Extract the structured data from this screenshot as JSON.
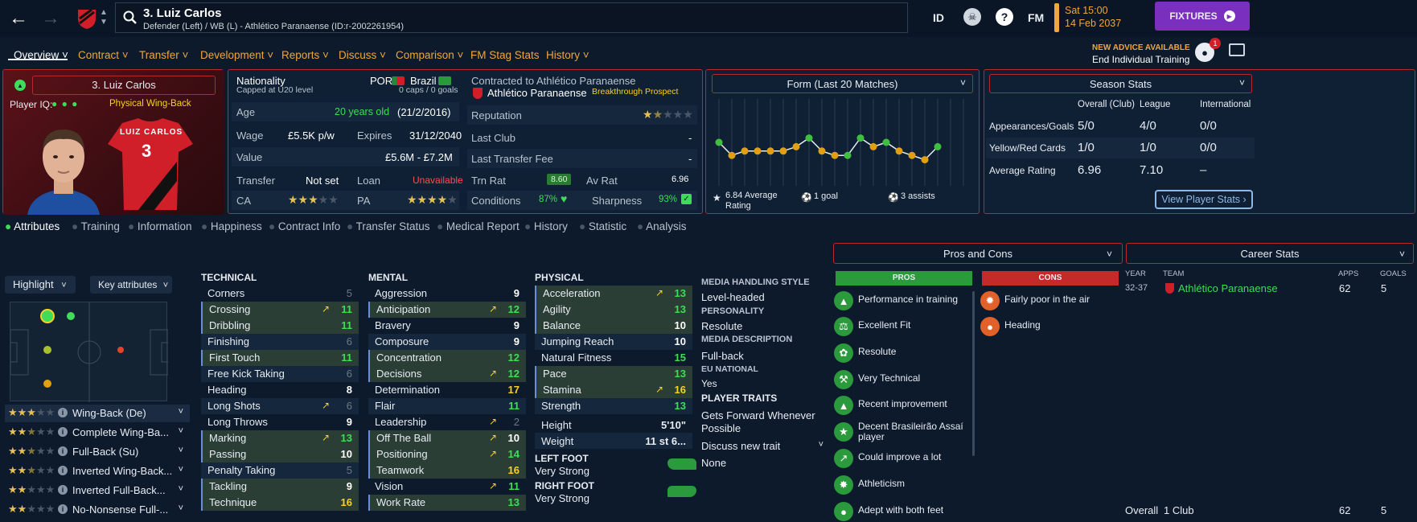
{
  "header": {
    "player_title": "3. Luiz Carlos",
    "player_sub": "Defender (Left) / WB (L) - Athlético Paranaense (ID:r-2002261954)",
    "id_label": "ID",
    "fm_label": "FM",
    "date_line1": "Sat 15:00",
    "date_line2": "14 Feb 2037",
    "fixtures_label": "FIXTURES",
    "advice_title": "NEW ADVICE AVAILABLE",
    "advice_sub": "End Individual Training",
    "notif_count": "1"
  },
  "nav": [
    "Overview",
    "Contract",
    "Transfer",
    "Development",
    "Reports",
    "Discuss",
    "Comparison",
    "FM Stag Stats",
    "History"
  ],
  "card": {
    "name": "3. Luiz Carlos",
    "iq_label": "Player IQ:",
    "role": "Physical Wing-Back",
    "shirt_name": "LUIZ CARLOS",
    "shirt_number": "3"
  },
  "info": {
    "nationality_label": "Nationality",
    "nationality_sub": "Capped at U20 level",
    "nat1": "POR",
    "nat2": "Brazil",
    "caps": "0 caps / 0 goals",
    "age_label": "Age",
    "age_val": "20 years old",
    "dob": "(21/2/2016)",
    "wage_label": "Wage",
    "wage_val": "£5.5K p/w",
    "expires_label": "Expires",
    "expires_val": "31/12/2040",
    "value_label": "Value",
    "value_val": "£5.6M - £7.2M",
    "transfer_label": "Transfer",
    "transfer_val": "Not set",
    "loan_label": "Loan",
    "loan_val": "Unavailable",
    "ca_label": "CA",
    "pa_label": "PA",
    "contracted_label": "Contracted to Athlético Paranaense",
    "club": "Athlético Paranaense",
    "prospect": "Breakthrough Prospect",
    "reputation_label": "Reputation",
    "last_club_label": "Last Club",
    "last_club_val": "-",
    "last_fee_label": "Last Transfer Fee",
    "last_fee_val": "-",
    "trn_rat_label": "Trn Rat",
    "trn_rat_val": "8.60",
    "av_rat_label": "Av Rat",
    "av_rat_val": "6.96",
    "conditions_label": "Conditions",
    "conditions_val": "87%",
    "sharpness_label": "Sharpness",
    "sharpness_val": "93%"
  },
  "form": {
    "title": "Form (Last 20 Matches)",
    "avg": "6.84 Average Rating",
    "goals": "1 goal",
    "assists": "3 assists"
  },
  "chart_data": {
    "type": "line",
    "title": "Form (Last 20 Matches)",
    "x": [
      1,
      2,
      3,
      4,
      5,
      6,
      7,
      8,
      9,
      10,
      11,
      12,
      13,
      14,
      15,
      16,
      17,
      18,
      19,
      20
    ],
    "values": [
      7.0,
      6.7,
      6.8,
      6.8,
      6.8,
      6.8,
      6.9,
      7.1,
      6.8,
      6.7,
      6.7,
      7.1,
      6.9,
      7.0,
      6.8,
      6.7,
      6.6,
      6.9,
      null,
      null
    ],
    "point_colors": [
      "#3fbf3f",
      "#e0a010",
      "#e0a010",
      "#e0a010",
      "#e0a010",
      "#e0a010",
      "#e0a010",
      "#3fbf3f",
      "#e0a010",
      "#e0a010",
      "#3fbf3f",
      "#3fbf3f",
      "#e0a010",
      "#3fbf3f",
      "#e0a010",
      "#e0a010",
      "#e0a010",
      "#3fbf3f"
    ],
    "ylim": [
      6.0,
      8.0
    ]
  },
  "season": {
    "title": "Season Stats",
    "cols": [
      "Overall (Club)",
      "League",
      "International"
    ],
    "rows": [
      {
        "label": "Appearances/Goals",
        "v": [
          "5/0",
          "4/0",
          "0/0"
        ]
      },
      {
        "label": "Yellow/Red Cards",
        "v": [
          "1/0",
          "1/0",
          "0/0"
        ]
      },
      {
        "label": "Average Rating",
        "v": [
          "6.96",
          "7.10",
          "–"
        ]
      }
    ],
    "btn": "View Player Stats"
  },
  "subtabs": [
    "Attributes",
    "Training",
    "Information",
    "Happiness",
    "Contract Info",
    "Transfer Status",
    "Medical Report",
    "History",
    "Statistic",
    "Analysis"
  ],
  "controls": {
    "highlight": "Highlight",
    "key_attr": "Key attributes"
  },
  "roles": [
    {
      "name": "Wing-Back (De)",
      "stars": 3,
      "half": false
    },
    {
      "name": "Complete Wing-Ba...",
      "stars": 2,
      "half": true
    },
    {
      "name": "Full-Back (Su)",
      "stars": 2,
      "half": true
    },
    {
      "name": "Inverted Wing-Back...",
      "stars": 2,
      "half": true
    },
    {
      "name": "Inverted Full-Back...",
      "stars": 2,
      "half": false
    },
    {
      "name": "No-Nonsense Full-...",
      "stars": 2,
      "half": false
    }
  ],
  "technical": {
    "title": "TECHNICAL",
    "items": [
      {
        "n": "Corners",
        "v": "5",
        "c": "dim"
      },
      {
        "n": "Crossing",
        "v": "11",
        "c": "green",
        "k": true,
        "arrow": true
      },
      {
        "n": "Dribbling",
        "v": "11",
        "c": "green",
        "k": true
      },
      {
        "n": "Finishing",
        "v": "6",
        "c": "dim"
      },
      {
        "n": "First Touch",
        "v": "11",
        "c": "green",
        "k": true
      },
      {
        "n": "Free Kick Taking",
        "v": "6",
        "c": "dim"
      },
      {
        "n": "Heading",
        "v": "8",
        "c": "white"
      },
      {
        "n": "Long Shots",
        "v": "6",
        "c": "dim",
        "arrow": true
      },
      {
        "n": "Long Throws",
        "v": "9",
        "c": "white"
      },
      {
        "n": "Marking",
        "v": "13",
        "c": "green",
        "k": true,
        "arrow": true
      },
      {
        "n": "Passing",
        "v": "10",
        "c": "white",
        "k": true
      },
      {
        "n": "Penalty Taking",
        "v": "5",
        "c": "dim"
      },
      {
        "n": "Tackling",
        "v": "9",
        "c": "white",
        "k": true
      },
      {
        "n": "Technique",
        "v": "16",
        "c": "yellow",
        "k": true
      }
    ]
  },
  "mental": {
    "title": "MENTAL",
    "items": [
      {
        "n": "Aggression",
        "v": "9",
        "c": "white"
      },
      {
        "n": "Anticipation",
        "v": "12",
        "c": "green",
        "k": true,
        "arrow": true
      },
      {
        "n": "Bravery",
        "v": "9",
        "c": "white"
      },
      {
        "n": "Composure",
        "v": "9",
        "c": "white"
      },
      {
        "n": "Concentration",
        "v": "12",
        "c": "green",
        "k": true
      },
      {
        "n": "Decisions",
        "v": "12",
        "c": "green",
        "k": true,
        "arrow": true
      },
      {
        "n": "Determination",
        "v": "17",
        "c": "yellow"
      },
      {
        "n": "Flair",
        "v": "11",
        "c": "green"
      },
      {
        "n": "Leadership",
        "v": "2",
        "c": "dim",
        "arrow": true
      },
      {
        "n": "Off The Ball",
        "v": "10",
        "c": "white",
        "k": true,
        "arrow": true
      },
      {
        "n": "Positioning",
        "v": "14",
        "c": "green",
        "k": true,
        "arrow": true
      },
      {
        "n": "Teamwork",
        "v": "16",
        "c": "yellow",
        "k": true
      },
      {
        "n": "Vision",
        "v": "11",
        "c": "green",
        "arrow": true
      },
      {
        "n": "Work Rate",
        "v": "13",
        "c": "green",
        "k": true
      }
    ]
  },
  "physical": {
    "title": "PHYSICAL",
    "items": [
      {
        "n": "Acceleration",
        "v": "13",
        "c": "green",
        "k": true,
        "arrow": true
      },
      {
        "n": "Agility",
        "v": "13",
        "c": "green",
        "k": true
      },
      {
        "n": "Balance",
        "v": "10",
        "c": "white",
        "k": true
      },
      {
        "n": "Jumping Reach",
        "v": "10",
        "c": "white"
      },
      {
        "n": "Natural Fitness",
        "v": "15",
        "c": "green"
      },
      {
        "n": "Pace",
        "v": "13",
        "c": "green",
        "k": true
      },
      {
        "n": "Stamina",
        "v": "16",
        "c": "yellow",
        "k": true,
        "arrow": true
      },
      {
        "n": "Strength",
        "v": "13",
        "c": "green"
      }
    ],
    "height_label": "Height",
    "height_val": "5'10\"",
    "weight_label": "Weight",
    "weight_val": "11 st 6...",
    "left_foot_label": "LEFT FOOT",
    "left_foot_val": "Very Strong",
    "right_foot_label": "RIGHT FOOT",
    "right_foot_val": "Very Strong"
  },
  "media": {
    "style_title": "MEDIA HANDLING STYLE",
    "style_val": "Level-headed",
    "pers_title": "PERSONALITY",
    "pers_val": "Resolute",
    "desc_title": "MEDIA DESCRIPTION",
    "desc_val": "Full-back",
    "eu_title": "EU NATIONAL",
    "eu_val": "Yes",
    "traits_title": "PLAYER TRAITS",
    "trait1": "Gets Forward Whenever Possible",
    "discuss": "Discuss new trait",
    "none": "None"
  },
  "pros_cons": {
    "title": "Pros and Cons",
    "pros_label": "PROS",
    "cons_label": "CONS",
    "pros": [
      "Performance in training",
      "Excellent Fit",
      "Resolute",
      "Very Technical",
      "Recent improvement",
      "Decent Brasileirão Assaí player",
      "Could improve a lot",
      "Athleticism",
      "Adept with both feet"
    ],
    "cons": [
      "Fairly poor in the air",
      "Heading"
    ]
  },
  "career": {
    "title": "Career Stats",
    "h_year": "YEAR",
    "h_team": "TEAM",
    "h_apps": "APPS",
    "h_goals": "GOALS",
    "year": "32-37",
    "team": "Athlético Paranaense",
    "apps": "62",
    "goals": "5",
    "overall": "Overall",
    "clubs": "1 Club",
    "tot_apps": "62",
    "tot_goals": "5"
  },
  "colors": {
    "accent": "#7b2fbf",
    "border": "#b32b2b",
    "green": "#3fdc5a",
    "yellow": "#f5d320",
    "orange": "#f0a63c"
  }
}
